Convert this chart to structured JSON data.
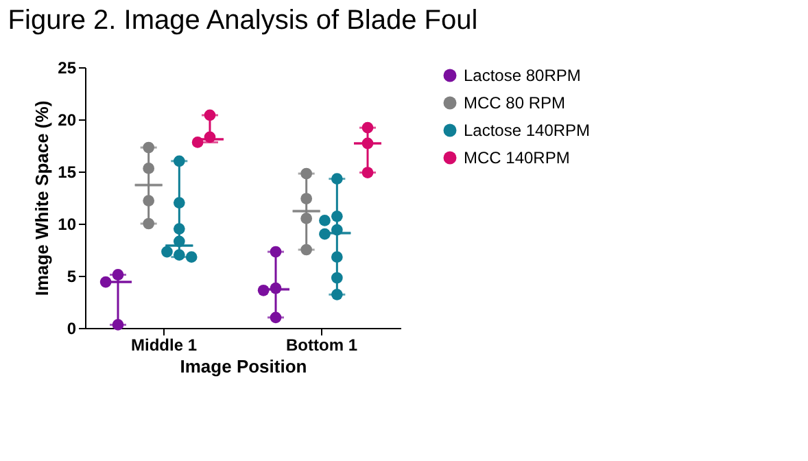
{
  "chart_data": {
    "type": "scatter",
    "title": "Figure 2. Image Analysis of Blade Foul",
    "xlabel": "Image Position",
    "ylabel": "Image White Space (%)",
    "categories": [
      "Middle 1",
      "Bottom 1"
    ],
    "ylim": [
      0,
      25
    ],
    "yticks": [
      0,
      5,
      10,
      15,
      20,
      25
    ],
    "grid": false,
    "legend": "right",
    "marker": "circle",
    "series": [
      {
        "name": "Lactose 80RPM",
        "color": "#7b0f9e",
        "x": [
          "Middle 1",
          "Middle 1",
          "Middle 1",
          "Bottom 1",
          "Bottom 1",
          "Bottom 1",
          "Bottom 1"
        ],
        "values": [
          5.1,
          4.4,
          0.3,
          7.3,
          3.8,
          3.6,
          1.0
        ]
      },
      {
        "name": "MCC 80 RPM",
        "color": "#808080",
        "x": [
          "Middle 1",
          "Middle 1",
          "Middle 1",
          "Middle 1",
          "Bottom 1",
          "Bottom 1",
          "Bottom 1",
          "Bottom 1"
        ],
        "values": [
          17.3,
          15.3,
          12.2,
          10.0,
          14.8,
          12.4,
          10.5,
          7.5
        ]
      },
      {
        "name": "Lactose 140RPM",
        "color": "#0f7f96",
        "x": [
          "Middle 1",
          "Middle 1",
          "Middle 1",
          "Middle 1",
          "Middle 1",
          "Middle 1",
          "Middle 1",
          "Bottom 1",
          "Bottom 1",
          "Bottom 1",
          "Bottom 1",
          "Bottom 1",
          "Bottom 1",
          "Bottom 1",
          "Bottom 1"
        ],
        "values": [
          16.0,
          12.0,
          9.5,
          8.3,
          7.3,
          7.0,
          6.8,
          14.3,
          10.7,
          10.3,
          9.4,
          9.0,
          6.8,
          4.8,
          3.2
        ]
      },
      {
        "name": "MCC 140RPM",
        "color": "#d60a6b",
        "x": [
          "Middle 1",
          "Middle 1",
          "Middle 1",
          "Bottom 1",
          "Bottom 1",
          "Bottom 1"
        ],
        "values": [
          20.4,
          18.3,
          17.8,
          19.2,
          17.7,
          14.9
        ]
      },
      {
        "type": "box",
        "color": "#7b0f9e",
        "boxes": [
          {
            "low": 0.3,
            "q1": 4.4,
            "median": 4.4,
            "q3": 4.4,
            "high": 5.1
          },
          {
            "low": 1.0,
            "q1": 3.7,
            "median": 3.7,
            "q3": 3.7,
            "high": 7.3
          }
        ]
      },
      {
        "type": "box",
        "color": "#808080",
        "boxes": [
          {
            "low": 10.0,
            "q1": 13.7,
            "median": 13.7,
            "q3": 13.7,
            "high": 17.3
          },
          {
            "low": 7.5,
            "q1": 11.2,
            "median": 11.2,
            "q3": 11.2,
            "high": 14.8
          }
        ]
      },
      {
        "type": "box",
        "color": "#0f7f96",
        "boxes": [
          {
            "low": 6.8,
            "q1": 7.9,
            "median": 7.9,
            "q3": 7.9,
            "high": 16.0
          },
          {
            "low": 3.2,
            "q1": 9.1,
            "median": 9.1,
            "q3": 9.1,
            "high": 14.3
          }
        ]
      },
      {
        "type": "box",
        "color": "#d60a6b",
        "boxes": [
          {
            "low": 17.8,
            "q1": 18.1,
            "median": 18.1,
            "q3": 18.1,
            "high": 20.4
          },
          {
            "low": 14.9,
            "q1": 17.7,
            "median": 17.7,
            "q3": 17.7,
            "high": 19.2
          }
        ]
      }
    ]
  }
}
